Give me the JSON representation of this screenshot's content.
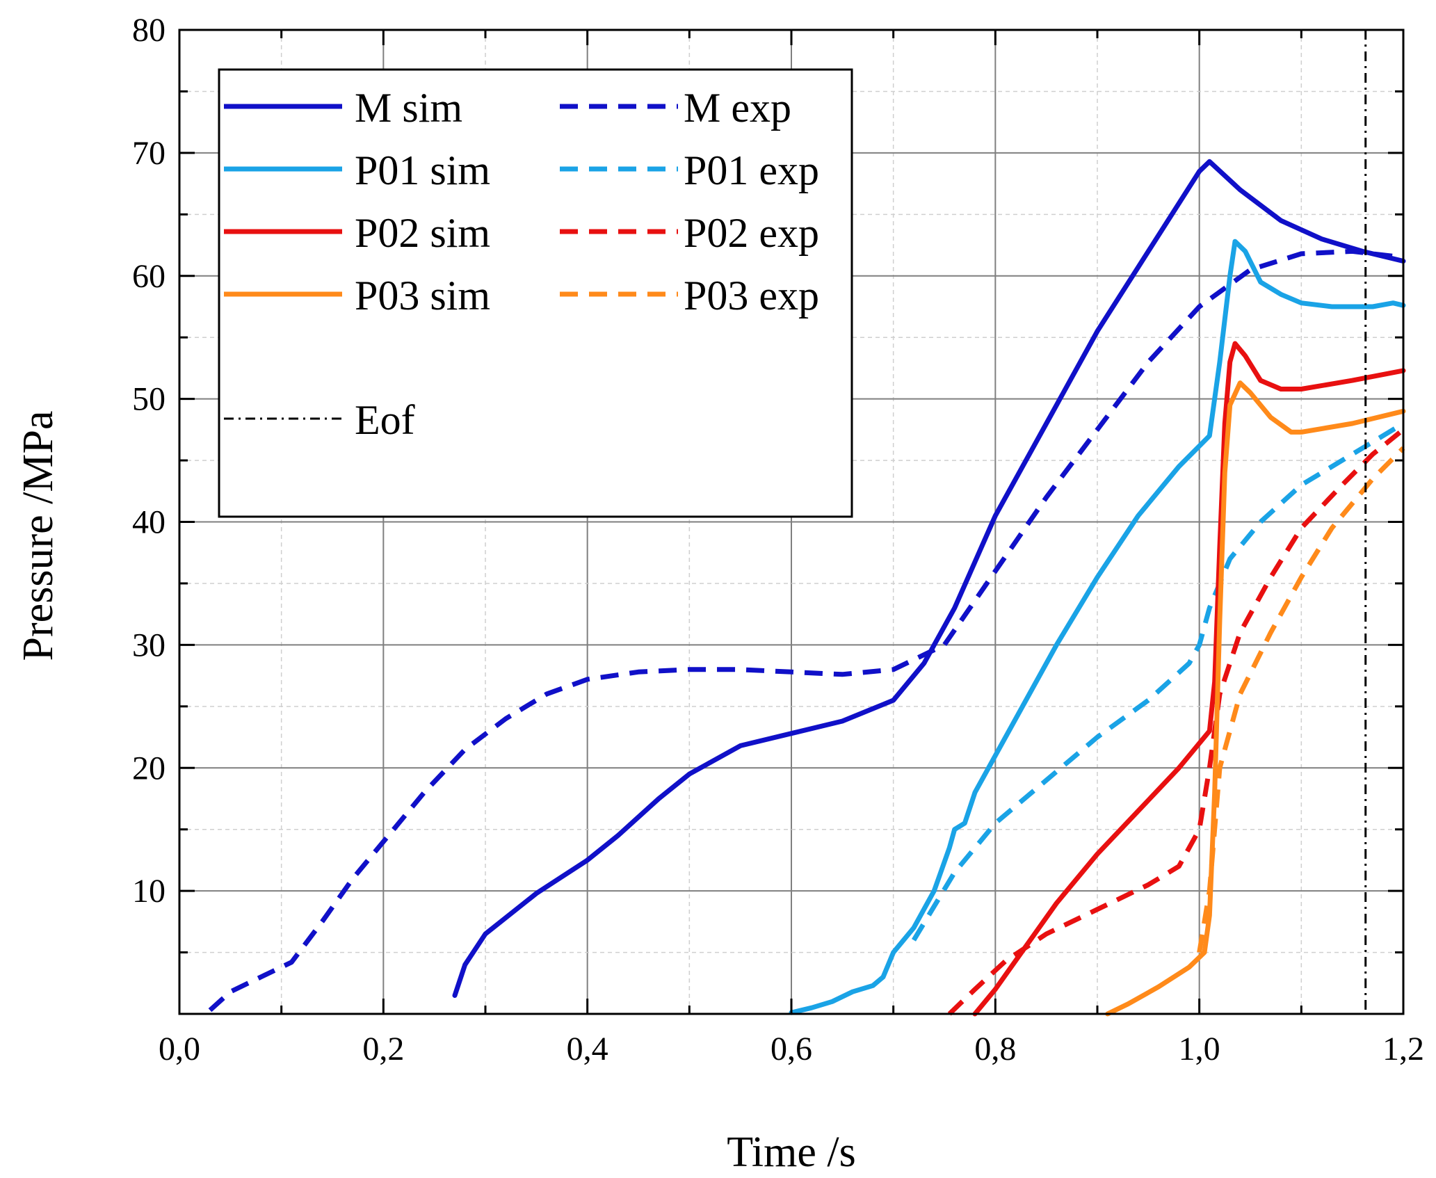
{
  "chart_data": {
    "type": "line",
    "title": "",
    "xlabel": "Time /s",
    "ylabel": "Pressure /MPa",
    "xlim": [
      0,
      1.2
    ],
    "ylim": [
      0,
      80
    ],
    "x_ticks": [
      "0,0",
      "0,2",
      "0,4",
      "0,6",
      "0,8",
      "1,0",
      "1,2"
    ],
    "y_ticks": [
      "10",
      "20",
      "30",
      "40",
      "50",
      "60",
      "70",
      "80"
    ],
    "grid": true,
    "legend_position": "top-left",
    "series": [
      {
        "name": "M sim",
        "color": "#1010c8",
        "style": "solid",
        "points": [
          [
            0.27,
            1.5
          ],
          [
            0.28,
            4
          ],
          [
            0.3,
            6.5
          ],
          [
            0.35,
            9.8
          ],
          [
            0.4,
            12.5
          ],
          [
            0.43,
            14.5
          ],
          [
            0.47,
            17.5
          ],
          [
            0.5,
            19.5
          ],
          [
            0.55,
            21.8
          ],
          [
            0.6,
            22.8
          ],
          [
            0.65,
            23.8
          ],
          [
            0.7,
            25.5
          ],
          [
            0.73,
            28.5
          ],
          [
            0.76,
            33
          ],
          [
            0.8,
            40.5
          ],
          [
            0.85,
            48
          ],
          [
            0.9,
            55.5
          ],
          [
            0.95,
            62
          ],
          [
            1.0,
            68.5
          ],
          [
            1.01,
            69.3
          ],
          [
            1.04,
            67
          ],
          [
            1.08,
            64.5
          ],
          [
            1.12,
            63
          ],
          [
            1.16,
            62
          ],
          [
            1.2,
            61.2
          ]
        ]
      },
      {
        "name": "M exp",
        "color": "#1010c8",
        "style": "dashed",
        "points": [
          [
            0.03,
            0.3
          ],
          [
            0.05,
            1.8
          ],
          [
            0.08,
            3
          ],
          [
            0.11,
            4.2
          ],
          [
            0.14,
            7.5
          ],
          [
            0.17,
            11
          ],
          [
            0.2,
            14
          ],
          [
            0.24,
            18
          ],
          [
            0.28,
            21.5
          ],
          [
            0.32,
            24
          ],
          [
            0.36,
            26
          ],
          [
            0.4,
            27.2
          ],
          [
            0.45,
            27.8
          ],
          [
            0.5,
            28
          ],
          [
            0.55,
            28
          ],
          [
            0.6,
            27.8
          ],
          [
            0.65,
            27.6
          ],
          [
            0.7,
            28
          ],
          [
            0.75,
            30
          ],
          [
            0.8,
            36
          ],
          [
            0.85,
            42
          ],
          [
            0.9,
            47.5
          ],
          [
            0.95,
            53
          ],
          [
            1.0,
            57.5
          ],
          [
            1.05,
            60.5
          ],
          [
            1.1,
            61.8
          ],
          [
            1.15,
            62
          ],
          [
            1.2,
            61.5
          ]
        ]
      },
      {
        "name": "P01 sim",
        "color": "#1aa3e6",
        "style": "solid",
        "points": [
          [
            0.6,
            0.1
          ],
          [
            0.62,
            0.5
          ],
          [
            0.64,
            1
          ],
          [
            0.66,
            1.8
          ],
          [
            0.68,
            2.3
          ],
          [
            0.69,
            3
          ],
          [
            0.7,
            5
          ],
          [
            0.72,
            7
          ],
          [
            0.74,
            10
          ],
          [
            0.755,
            13.5
          ],
          [
            0.76,
            15
          ],
          [
            0.77,
            15.5
          ],
          [
            0.78,
            18
          ],
          [
            0.8,
            21
          ],
          [
            0.83,
            25.5
          ],
          [
            0.86,
            30
          ],
          [
            0.9,
            35.5
          ],
          [
            0.94,
            40.5
          ],
          [
            0.98,
            44.5
          ],
          [
            1.01,
            47
          ],
          [
            1.02,
            53
          ],
          [
            1.03,
            60
          ],
          [
            1.035,
            62.8
          ],
          [
            1.045,
            62
          ],
          [
            1.06,
            59.5
          ],
          [
            1.08,
            58.5
          ],
          [
            1.1,
            57.8
          ],
          [
            1.13,
            57.5
          ],
          [
            1.17,
            57.5
          ],
          [
            1.19,
            57.8
          ],
          [
            1.2,
            57.6
          ]
        ]
      },
      {
        "name": "P01 exp",
        "color": "#1aa3e6",
        "style": "dashed",
        "points": [
          [
            0.72,
            6
          ],
          [
            0.76,
            11.5
          ],
          [
            0.8,
            15.5
          ],
          [
            0.85,
            19
          ],
          [
            0.9,
            22.5
          ],
          [
            0.95,
            25.5
          ],
          [
            0.99,
            28.5
          ],
          [
            1.0,
            30
          ],
          [
            1.01,
            33
          ],
          [
            1.03,
            37
          ],
          [
            1.06,
            40
          ],
          [
            1.1,
            43
          ],
          [
            1.15,
            45.5
          ],
          [
            1.2,
            48
          ]
        ]
      },
      {
        "name": "P02 sim",
        "color": "#e81010",
        "style": "solid",
        "points": [
          [
            0.78,
            0
          ],
          [
            0.8,
            2
          ],
          [
            0.83,
            5.5
          ],
          [
            0.86,
            9
          ],
          [
            0.9,
            13
          ],
          [
            0.94,
            16.5
          ],
          [
            0.98,
            20
          ],
          [
            1.005,
            22.5
          ],
          [
            1.01,
            23
          ],
          [
            1.015,
            27
          ],
          [
            1.02,
            38
          ],
          [
            1.025,
            48
          ],
          [
            1.03,
            53
          ],
          [
            1.035,
            54.5
          ],
          [
            1.045,
            53.5
          ],
          [
            1.06,
            51.5
          ],
          [
            1.08,
            50.8
          ],
          [
            1.1,
            50.8
          ],
          [
            1.15,
            51.5
          ],
          [
            1.2,
            52.3
          ]
        ]
      },
      {
        "name": "P02 exp",
        "color": "#e81010",
        "style": "dashed",
        "points": [
          [
            0.755,
            0
          ],
          [
            0.78,
            2
          ],
          [
            0.81,
            4.3
          ],
          [
            0.85,
            6.5
          ],
          [
            0.9,
            8.5
          ],
          [
            0.95,
            10.5
          ],
          [
            0.98,
            12
          ],
          [
            1.0,
            15
          ],
          [
            1.01,
            20
          ],
          [
            1.02,
            26
          ],
          [
            1.04,
            31
          ],
          [
            1.07,
            35.5
          ],
          [
            1.1,
            39.5
          ],
          [
            1.14,
            43
          ],
          [
            1.17,
            45.5
          ],
          [
            1.2,
            47.5
          ]
        ]
      },
      {
        "name": "P03 sim",
        "color": "#ff8a1a",
        "style": "solid",
        "points": [
          [
            0.91,
            0
          ],
          [
            0.93,
            0.8
          ],
          [
            0.96,
            2.2
          ],
          [
            0.99,
            3.8
          ],
          [
            1.005,
            5
          ],
          [
            1.01,
            8
          ],
          [
            1.015,
            18
          ],
          [
            1.02,
            32
          ],
          [
            1.025,
            44
          ],
          [
            1.03,
            49.5
          ],
          [
            1.04,
            51.3
          ],
          [
            1.05,
            50.5
          ],
          [
            1.07,
            48.5
          ],
          [
            1.09,
            47.3
          ],
          [
            1.1,
            47.3
          ],
          [
            1.15,
            48
          ],
          [
            1.2,
            49
          ]
        ]
      },
      {
        "name": "P03 exp",
        "color": "#ff8a1a",
        "style": "dashed",
        "points": [
          [
            1.0,
            5
          ],
          [
            1.01,
            10
          ],
          [
            1.02,
            20
          ],
          [
            1.04,
            26
          ],
          [
            1.07,
            31
          ],
          [
            1.1,
            35.5
          ],
          [
            1.13,
            39.5
          ],
          [
            1.17,
            43.5
          ],
          [
            1.2,
            46
          ]
        ]
      }
    ],
    "reference_lines": [
      {
        "name": "Eof",
        "x": 1.163,
        "color": "#000000",
        "style": "dashdot"
      }
    ]
  }
}
